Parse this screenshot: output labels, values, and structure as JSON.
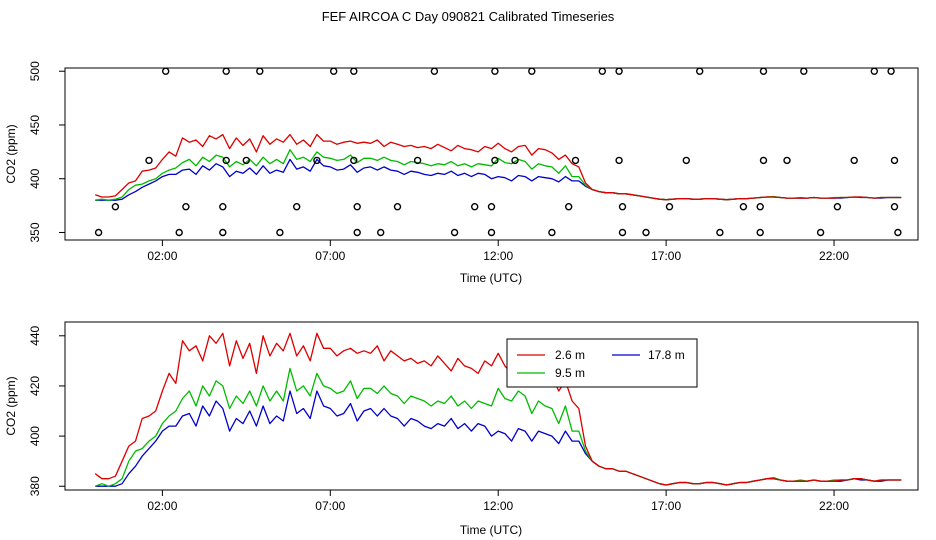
{
  "title": "FEF AIRCOA C  Day 090821  Calibrated Timeseries",
  "colors": {
    "s1": "#dd0000",
    "s2": "#00bb00",
    "s3": "#0000cc"
  },
  "chart_data": [
    {
      "type": "scatter+line",
      "xlabel": "Time (UTC)",
      "ylabel": "CO2 (ppm)",
      "xlim": [
        -0.9,
        24.5
      ],
      "ylim": [
        343,
        503
      ],
      "x_ticks": [
        2,
        7,
        12,
        17,
        22
      ],
      "x_tick_labels": [
        "02:00",
        "07:00",
        "12:00",
        "17:00",
        "22:00"
      ],
      "y_ticks": [
        350,
        400,
        450,
        500
      ],
      "y_tick_labels": [
        "350",
        "400",
        "450",
        "500"
      ],
      "points": [
        {
          "x": 2.1,
          "y": 500
        },
        {
          "x": 3.9,
          "y": 500
        },
        {
          "x": 4.9,
          "y": 500
        },
        {
          "x": 7.1,
          "y": 500
        },
        {
          "x": 7.7,
          "y": 500
        },
        {
          "x": 10.1,
          "y": 500
        },
        {
          "x": 11.9,
          "y": 500
        },
        {
          "x": 13.0,
          "y": 500
        },
        {
          "x": 15.1,
          "y": 500
        },
        {
          "x": 15.6,
          "y": 500
        },
        {
          "x": 18.0,
          "y": 500
        },
        {
          "x": 19.9,
          "y": 500
        },
        {
          "x": 21.1,
          "y": 500
        },
        {
          "x": 23.2,
          "y": 500
        },
        {
          "x": 23.7,
          "y": 500
        },
        {
          "x": 1.6,
          "y": 417
        },
        {
          "x": 3.9,
          "y": 417
        },
        {
          "x": 4.5,
          "y": 417
        },
        {
          "x": 6.6,
          "y": 417
        },
        {
          "x": 7.7,
          "y": 417
        },
        {
          "x": 9.6,
          "y": 417
        },
        {
          "x": 11.9,
          "y": 417
        },
        {
          "x": 12.5,
          "y": 417
        },
        {
          "x": 14.3,
          "y": 417
        },
        {
          "x": 15.6,
          "y": 417
        },
        {
          "x": 17.6,
          "y": 417
        },
        {
          "x": 19.9,
          "y": 417
        },
        {
          "x": 20.6,
          "y": 417
        },
        {
          "x": 22.6,
          "y": 417
        },
        {
          "x": 23.8,
          "y": 417
        },
        {
          "x": 0.6,
          "y": 374
        },
        {
          "x": 2.7,
          "y": 374
        },
        {
          "x": 3.8,
          "y": 374
        },
        {
          "x": 6.0,
          "y": 374
        },
        {
          "x": 7.8,
          "y": 374
        },
        {
          "x": 9.0,
          "y": 374
        },
        {
          "x": 11.3,
          "y": 374
        },
        {
          "x": 11.8,
          "y": 374
        },
        {
          "x": 14.1,
          "y": 374
        },
        {
          "x": 15.7,
          "y": 374
        },
        {
          "x": 17.1,
          "y": 374
        },
        {
          "x": 19.3,
          "y": 374
        },
        {
          "x": 19.8,
          "y": 374
        },
        {
          "x": 22.1,
          "y": 374
        },
        {
          "x": 23.8,
          "y": 374
        },
        {
          "x": 0.1,
          "y": 350
        },
        {
          "x": 2.5,
          "y": 350
        },
        {
          "x": 3.8,
          "y": 350
        },
        {
          "x": 5.5,
          "y": 350
        },
        {
          "x": 7.8,
          "y": 350
        },
        {
          "x": 8.5,
          "y": 350
        },
        {
          "x": 10.7,
          "y": 350
        },
        {
          "x": 11.8,
          "y": 350
        },
        {
          "x": 13.6,
          "y": 350
        },
        {
          "x": 15.7,
          "y": 350
        },
        {
          "x": 16.4,
          "y": 350
        },
        {
          "x": 18.6,
          "y": 350
        },
        {
          "x": 19.8,
          "y": 350
        },
        {
          "x": 21.6,
          "y": 350
        },
        {
          "x": 23.9,
          "y": 350
        }
      ]
    },
    {
      "type": "line",
      "xlabel": "Time (UTC)",
      "ylabel": "CO2 (ppm)",
      "xlim": [
        -0.9,
        24.5
      ],
      "ylim": [
        378.5,
        445.5
      ],
      "x_ticks": [
        2,
        7,
        12,
        17,
        22
      ],
      "x_tick_labels": [
        "02:00",
        "07:00",
        "12:00",
        "17:00",
        "22:00"
      ],
      "y_ticks": [
        380,
        400,
        420,
        440
      ],
      "y_tick_labels": [
        "380",
        "400",
        "420",
        "440"
      ],
      "legend": {
        "placement": "top-right",
        "entries": [
          "2.6 m",
          "9.5 m",
          "17.8 m"
        ]
      }
    }
  ],
  "series_data": {
    "x": [
      0.0,
      0.2,
      0.4,
      0.6,
      0.8,
      1.0,
      1.2,
      1.4,
      1.6,
      1.8,
      2.0,
      2.2,
      2.4,
      2.6,
      2.8,
      3.0,
      3.2,
      3.4,
      3.6,
      3.8,
      4.0,
      4.2,
      4.4,
      4.6,
      4.8,
      5.0,
      5.2,
      5.4,
      5.6,
      5.8,
      6.0,
      6.2,
      6.4,
      6.6,
      6.8,
      7.0,
      7.2,
      7.4,
      7.6,
      7.8,
      8.0,
      8.2,
      8.4,
      8.6,
      8.8,
      9.0,
      9.2,
      9.4,
      9.6,
      9.8,
      10.0,
      10.2,
      10.4,
      10.6,
      10.8,
      11.0,
      11.2,
      11.4,
      11.6,
      11.8,
      12.0,
      12.2,
      12.4,
      12.6,
      12.8,
      13.0,
      13.2,
      13.4,
      13.6,
      13.8,
      14.0,
      14.2,
      14.4,
      14.6,
      14.8,
      15.0,
      15.2,
      15.4,
      15.6,
      15.8,
      16.0,
      16.2,
      16.4,
      16.6,
      16.8,
      17.0,
      17.2,
      17.4,
      17.6,
      17.8,
      18.0,
      18.2,
      18.4,
      18.6,
      18.8,
      19.0,
      19.2,
      19.4,
      19.6,
      19.8,
      20.0,
      20.2,
      20.4,
      20.6,
      20.8,
      21.0,
      21.2,
      21.4,
      21.6,
      21.8,
      22.0,
      22.2,
      22.4,
      22.6,
      22.8,
      23.0,
      23.2,
      23.4,
      23.6,
      23.8,
      24.0
    ],
    "series": [
      {
        "name": "2.6 m",
        "color": "#dd0000",
        "values": [
          385,
          383,
          383,
          384,
          390,
          396,
          398,
          407,
          408,
          410,
          418,
          425,
          421,
          438,
          434,
          436,
          430,
          440,
          437,
          441,
          428,
          438,
          431,
          437,
          425,
          440,
          432,
          437,
          434,
          441,
          432,
          436,
          430,
          441,
          435,
          435,
          432,
          434,
          435,
          433,
          434,
          433,
          436,
          430,
          434,
          432,
          430,
          431,
          429,
          430,
          428,
          432,
          429,
          426,
          431,
          428,
          427,
          425,
          430,
          428,
          433,
          428,
          425,
          430,
          431,
          422,
          428,
          427,
          424,
          418,
          422,
          414,
          411,
          396,
          390,
          388,
          387,
          387,
          386,
          386,
          385,
          384,
          383,
          382,
          381,
          380.5,
          381,
          381.5,
          381.5,
          381,
          381,
          381.5,
          381.5,
          381,
          380.5,
          381,
          381.5,
          381.5,
          382,
          382.5,
          383,
          383,
          382.5,
          382,
          382,
          382,
          382,
          382.5,
          382,
          382,
          382,
          382.5,
          382.5,
          383,
          383,
          382.5,
          382,
          382.5,
          382.5,
          382.5,
          382.5
        ]
      },
      {
        "name": "9.5 m",
        "color": "#00bb00",
        "values": [
          380,
          381,
          380,
          381,
          383,
          390,
          394,
          395,
          398,
          400,
          405,
          408,
          410,
          415,
          418,
          412,
          420,
          416,
          422,
          420,
          411,
          416,
          413,
          418,
          412,
          420,
          414,
          418,
          414,
          427,
          418,
          420,
          416,
          425,
          420,
          419,
          417,
          418,
          422,
          415,
          419,
          419,
          417,
          420,
          417,
          416,
          413,
          416,
          415,
          414,
          412,
          414,
          413,
          416,
          412,
          414,
          411,
          414,
          413,
          412,
          419,
          415,
          414,
          418,
          416,
          409,
          414,
          412,
          411,
          405,
          412,
          402,
          402,
          394,
          390,
          388,
          387,
          387,
          386,
          386,
          385,
          384,
          383,
          382,
          381,
          380.5,
          381,
          381.5,
          381.5,
          381,
          381,
          381.5,
          381.5,
          381,
          380.5,
          381,
          381.5,
          381.5,
          382,
          382.5,
          383,
          383.5,
          382.5,
          382,
          382,
          382.5,
          382,
          382.5,
          382,
          382,
          382.5,
          382.5,
          382.5,
          383,
          383,
          382.5,
          382,
          382.5,
          382.5,
          382.5,
          382.5
        ]
      },
      {
        "name": "17.8 m",
        "color": "#0000cc",
        "values": [
          380,
          380,
          380,
          380,
          381,
          385,
          388,
          392,
          395,
          398,
          402,
          404,
          404,
          408,
          409,
          404,
          412,
          408,
          414,
          411,
          402,
          407,
          405,
          410,
          404,
          412,
          405,
          408,
          406,
          418,
          409,
          411,
          407,
          418,
          412,
          411,
          408,
          409,
          413,
          406,
          410,
          411,
          408,
          411,
          408,
          407,
          404,
          407,
          406,
          404,
          403,
          405,
          404,
          407,
          403,
          405,
          402,
          405,
          404,
          400,
          402,
          401,
          398,
          403,
          402,
          398,
          402,
          401,
          400,
          397,
          402,
          398,
          398,
          393,
          390,
          388,
          387,
          387,
          386,
          386,
          385,
          384,
          383,
          382,
          381,
          380.5,
          381,
          381.5,
          381.5,
          381,
          381,
          381.5,
          381.5,
          381,
          380.5,
          381,
          381.5,
          381.5,
          382,
          382.5,
          383,
          383,
          382.5,
          382,
          382,
          382,
          382,
          382.5,
          382,
          382,
          382,
          382,
          382.5,
          383,
          382.5,
          382.5,
          382,
          382,
          382.5,
          382.5,
          382.5
        ]
      }
    ]
  }
}
